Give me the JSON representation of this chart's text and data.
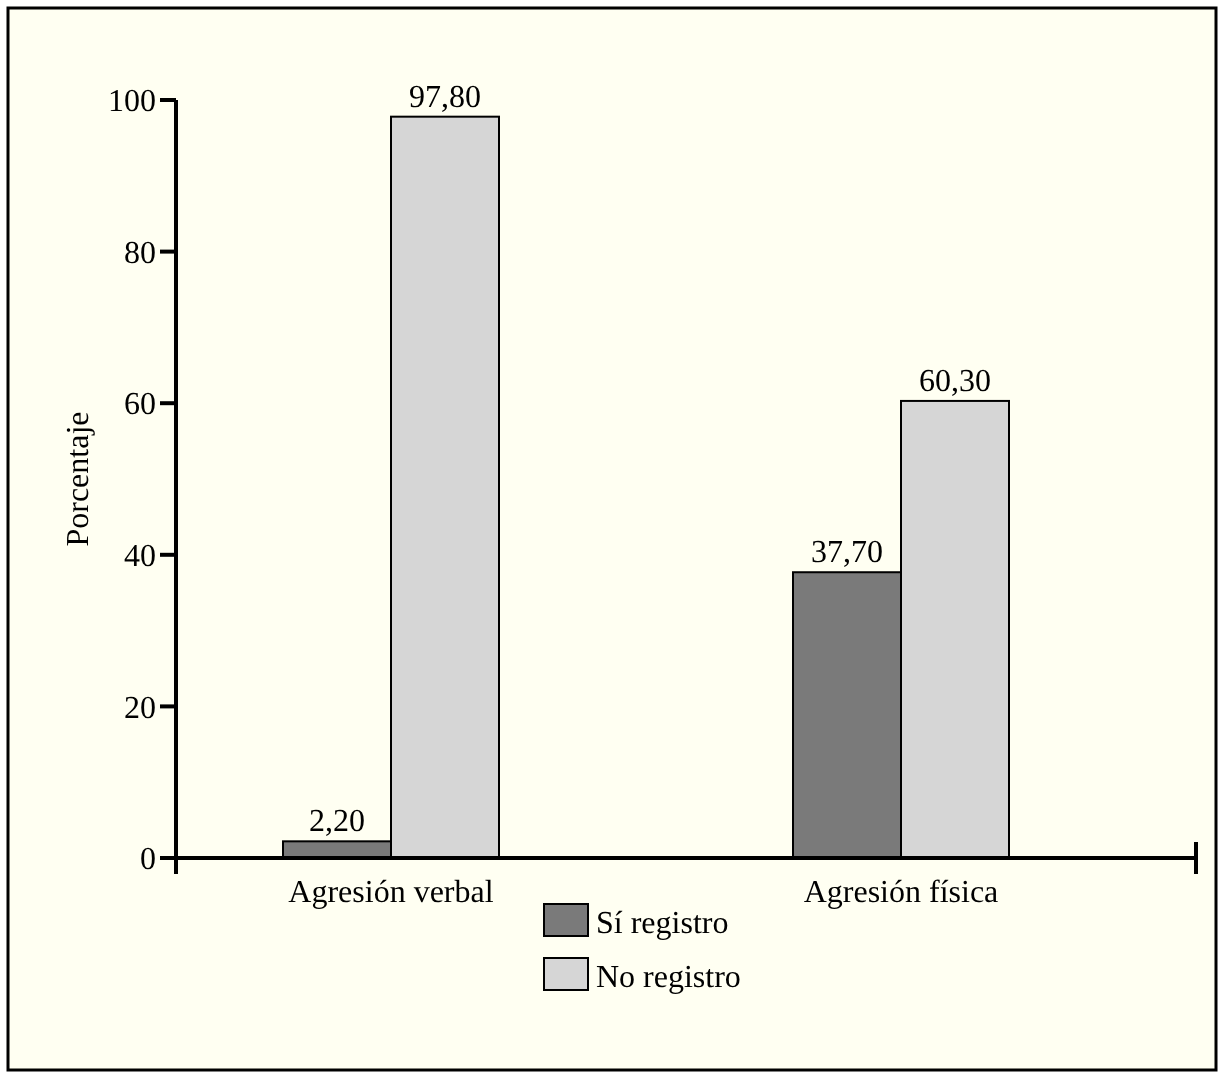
{
  "chart_data": {
    "type": "bar",
    "ylabel": "Porcentaje",
    "categories": [
      "Agresión verbal",
      "Agresión física"
    ],
    "series": [
      {
        "name": "Sí registro",
        "color": "#7a7a7a",
        "values": [
          2.2,
          37.7
        ],
        "value_labels": [
          "2,20",
          "37,70"
        ]
      },
      {
        "name": "No registro",
        "color": "#d6d6d6",
        "values": [
          97.8,
          60.3
        ],
        "value_labels": [
          "97,80",
          "60,30"
        ]
      }
    ],
    "ylim": [
      0,
      100
    ],
    "yticks": [
      0,
      20,
      40,
      60,
      80,
      100
    ],
    "grid": false,
    "legend": "bottom"
  }
}
